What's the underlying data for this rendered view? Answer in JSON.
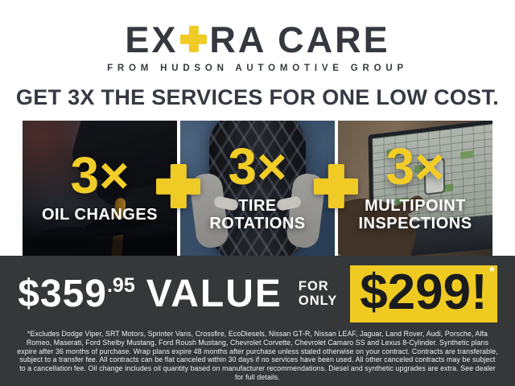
{
  "brand": {
    "logo_prefix": "EX",
    "logo_suffix": "RA CARE",
    "tagline": "FROM HUDSON AUTOMOTIVE GROUP"
  },
  "headline": "GET 3X THE SERVICES FOR ONE LOW COST.",
  "services": [
    {
      "multiplier": "3×",
      "label": "OIL CHANGES",
      "photo": "oil-change-photo"
    },
    {
      "multiplier": "3×",
      "label": "TIRE ROTATIONS",
      "photo": "tire-rotation-photo"
    },
    {
      "multiplier": "3×",
      "label": "MULTIPOINT INSPECTIONS",
      "photo": "multipoint-inspection-photo"
    }
  ],
  "offer": {
    "value_dollars": "$359",
    "value_cents": ".95",
    "value_word": "VALUE",
    "for_word": "FOR",
    "only_word": "ONLY",
    "price": "$299!",
    "asterisk": "*"
  },
  "disclaimer": "*Excludes Dodge Viper, SRT Motors, Sprinter Vans, Crossfire, EcoDiesels, Nissan GT-R, Nissan LEAF, Jaguar, Land Rover, Audi, Porsche, Alfa Romeo, Maserati, Ford Shelby Mustang, Ford Roush Mustang, Chevrolet Corvette, Chevrolet Camaro SS and Lexus 8-Cylinder. Synthetic plans expire after 36 months of purchase. Wrap plans expire 48 months after purchase unless stated otherwise on your contract. Contracts are transferable, subject to a transfer fee. All contracts can be flat canceled within 30 days if no services have been used. All other canceled contracts may be subject to a cancellation fee. Oil change includes oil quantity based on manufacturer recommendations. Diesel and synthetic upgrades are extra. See dealer for full details.",
  "colors": {
    "accent_yellow": "#F0CB26",
    "charcoal_text": "#35393F",
    "band_background": "#363738",
    "price_box_yellow": "#EFCB22"
  }
}
